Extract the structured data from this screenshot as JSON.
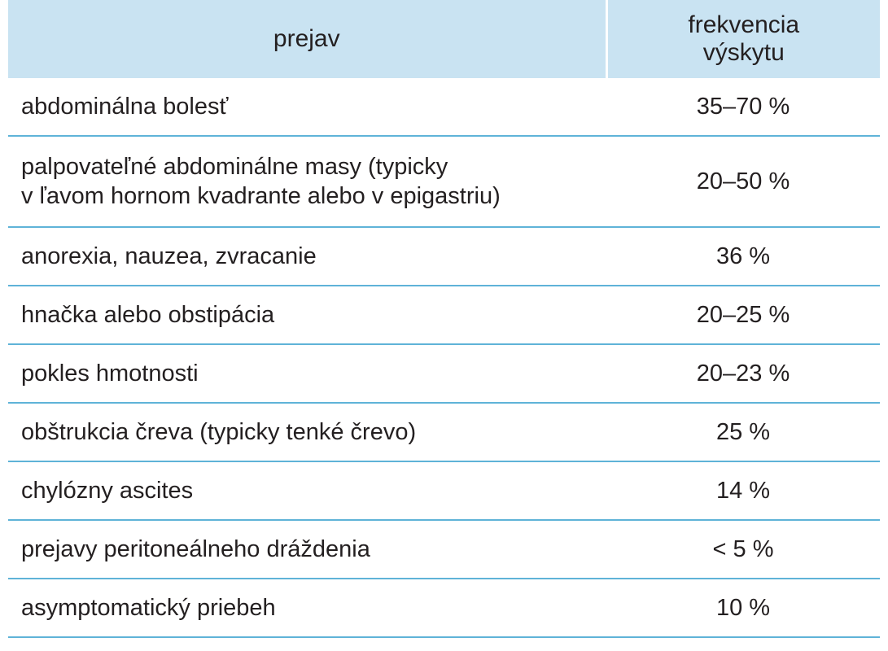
{
  "table": {
    "headers": {
      "col1": "prejav",
      "col2_line1": "frekvencia",
      "col2_line2": "výskytu"
    },
    "rows": [
      {
        "name": [
          "abdominálna bolesť"
        ],
        "freq": "35–70 %"
      },
      {
        "name": [
          "palpovateľné abdominálne masy (typicky",
          "v ľavom hornom kvadrante alebo v epigastriu)"
        ],
        "freq": "20–50 %"
      },
      {
        "name": [
          "anorexia, nauzea, zvracanie"
        ],
        "freq": "36 %"
      },
      {
        "name": [
          "hnačka alebo obstipácia"
        ],
        "freq": "20–25 %"
      },
      {
        "name": [
          "pokles hmotnosti"
        ],
        "freq": "20–23 %"
      },
      {
        "name": [
          "obštrukcia čreva (typicky tenké črevo)"
        ],
        "freq": "25 %"
      },
      {
        "name": [
          "chylózny ascites"
        ],
        "freq": "14 %"
      },
      {
        "name": [
          "prejavy peritoneálneho dráždenia"
        ],
        "freq": "< 5 %"
      },
      {
        "name": [
          "asymptomatický priebeh"
        ],
        "freq": "10 %"
      }
    ]
  },
  "colors": {
    "header_bg": "#c9e3f2",
    "row_border": "#5fb3d8",
    "text": "#231f20"
  }
}
